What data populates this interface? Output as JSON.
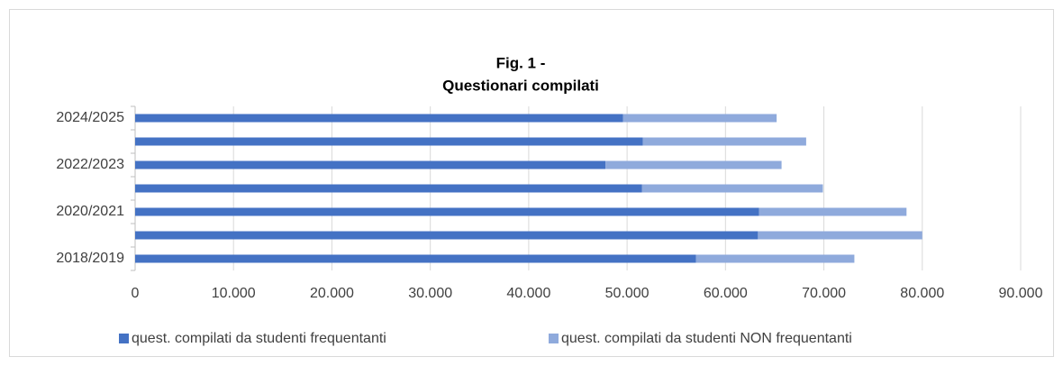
{
  "chart_data": {
    "type": "stacked-horizontal-bar",
    "title": "Fig. 1 -",
    "subtitle": "Questionari compilati",
    "categories": [
      "2024/2025",
      null,
      "2022/2023",
      null,
      "2020/2021",
      null,
      "2018/2019"
    ],
    "series": [
      {
        "name": "quest. compilati da studenti frequentanti",
        "color": "#4472c4",
        "values": [
          49600,
          51600,
          47800,
          51500,
          63400,
          63300,
          57000
        ]
      },
      {
        "name": "quest. compilati da studenti NON frequentanti",
        "color": "#8faadc",
        "values": [
          15600,
          16600,
          17900,
          18400,
          15000,
          16700,
          16100
        ]
      }
    ],
    "xlim": [
      0,
      90000
    ],
    "xticks": [
      0,
      {
        "value": 10000,
        "label": "10.000"
      },
      {
        "value": 20000,
        "label": "20.000"
      },
      {
        "value": 30000,
        "label": "30.000"
      },
      {
        "value": 40000,
        "label": "40.000"
      },
      {
        "value": 50000,
        "label": "50.000"
      },
      {
        "value": 60000,
        "label": "60.000"
      },
      {
        "value": 70000,
        "label": "70.000"
      },
      {
        "value": 80000,
        "label": "80.000"
      },
      {
        "value": 90000,
        "label": "90.000"
      }
    ],
    "grid": true,
    "legend": "bottom"
  }
}
